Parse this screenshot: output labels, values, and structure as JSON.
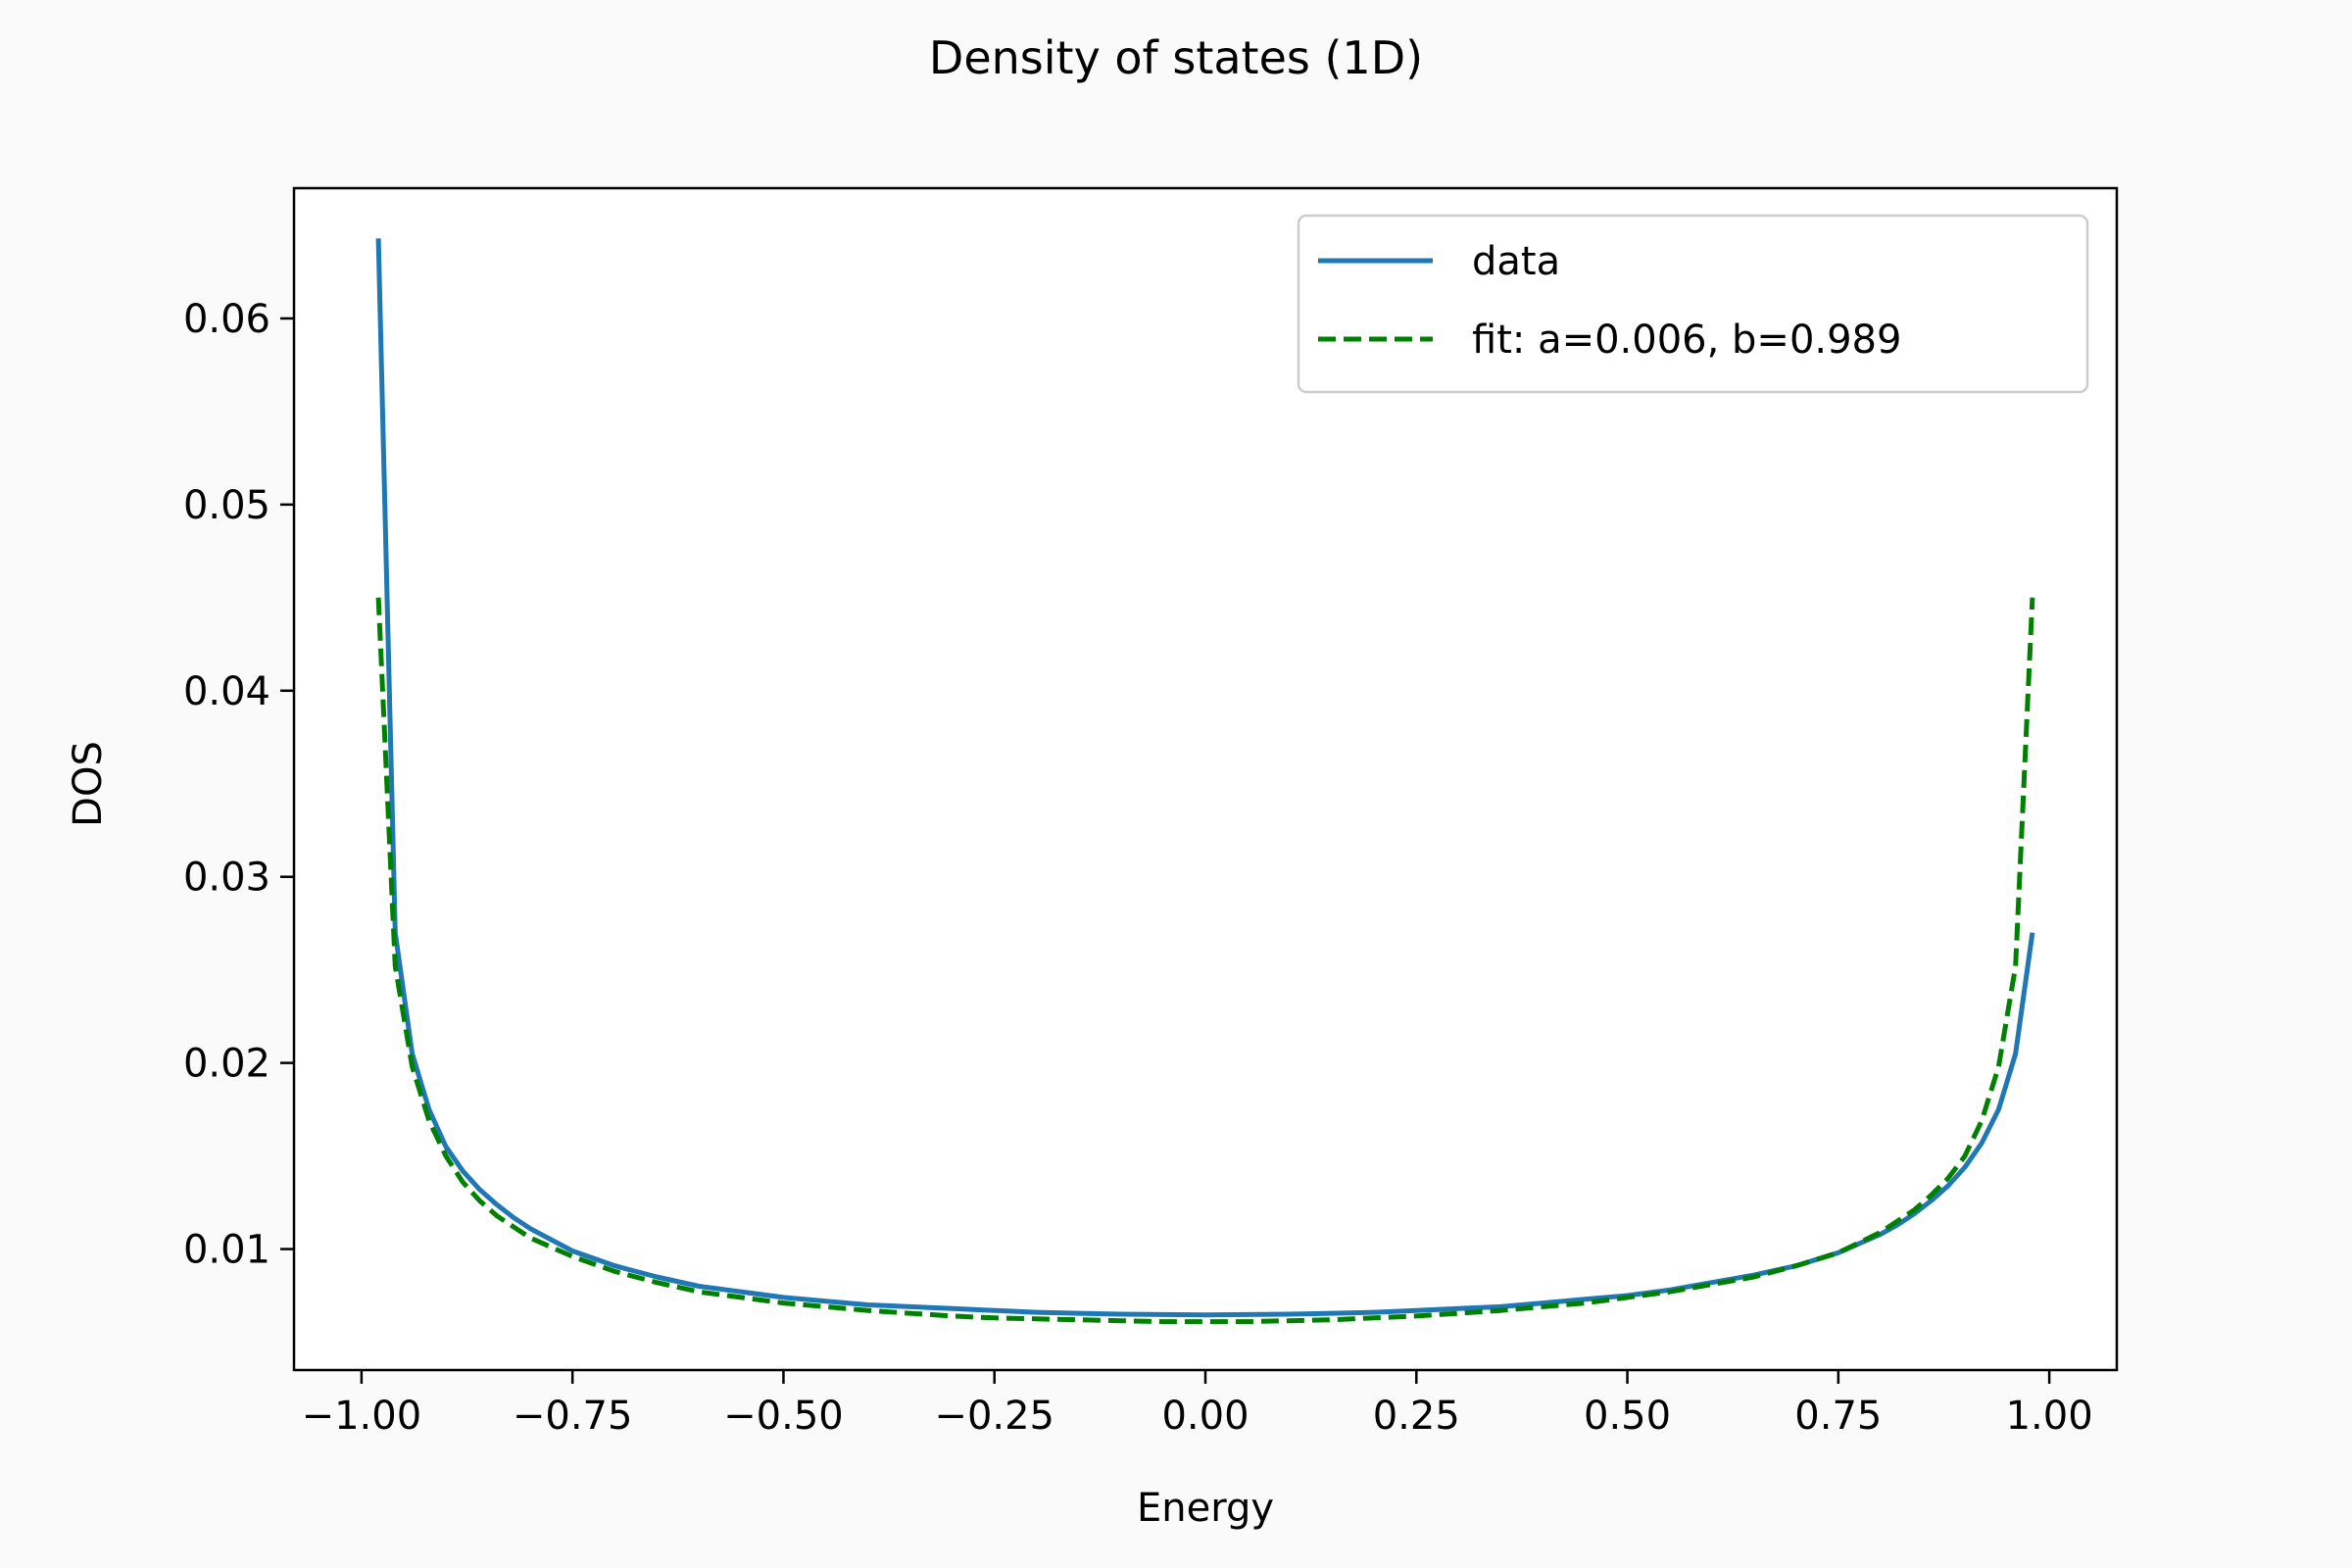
{
  "chart_data": {
    "type": "line",
    "title": "Density of states (1D)",
    "xlabel": "Energy",
    "ylabel": "DOS",
    "xlim": [
      -1.08,
      1.08
    ],
    "ylim": [
      0.0035,
      0.067
    ],
    "xticks": [
      -1.0,
      -0.75,
      -0.5,
      -0.25,
      0.0,
      0.25,
      0.5,
      0.75,
      1.0
    ],
    "xtick_labels": [
      "−1.00",
      "−0.75",
      "−0.50",
      "−0.25",
      "0.00",
      "0.25",
      "0.50",
      "0.75",
      "1.00"
    ],
    "yticks": [
      0.01,
      0.02,
      0.03,
      0.04,
      0.05,
      0.06
    ],
    "ytick_labels": [
      "0.01",
      "0.02",
      "0.03",
      "0.04",
      "0.05",
      "0.06"
    ],
    "grid": false,
    "legend_position": "upper right",
    "series": [
      {
        "name": "data",
        "color": "#1f77b4",
        "style": "solid",
        "x": [
          -0.98,
          -0.96,
          -0.94,
          -0.92,
          -0.9,
          -0.88,
          -0.86,
          -0.84,
          -0.82,
          -0.8,
          -0.75,
          -0.7,
          -0.65,
          -0.6,
          -0.55,
          -0.5,
          -0.45,
          -0.4,
          -0.35,
          -0.3,
          -0.25,
          -0.2,
          -0.15,
          -0.1,
          -0.05,
          0.0,
          0.05,
          0.1,
          0.15,
          0.2,
          0.25,
          0.3,
          0.35,
          0.4,
          0.45,
          0.5,
          0.55,
          0.6,
          0.65,
          0.7,
          0.75,
          0.8,
          0.82,
          0.84,
          0.86,
          0.88,
          0.9,
          0.92,
          0.94,
          0.96,
          0.98
        ],
        "y": [
          0.0643,
          0.027,
          0.0205,
          0.0175,
          0.0155,
          0.0142,
          0.0132,
          0.0124,
          0.0117,
          0.0111,
          0.0099,
          0.0091,
          0.0085,
          0.008,
          0.0077,
          0.0074,
          0.0072,
          0.007,
          0.0069,
          0.0068,
          0.0067,
          0.0066,
          0.00655,
          0.0065,
          0.00648,
          0.00646,
          0.00648,
          0.0065,
          0.00655,
          0.0066,
          0.0067,
          0.0068,
          0.0069,
          0.0071,
          0.0073,
          0.0075,
          0.0078,
          0.0082,
          0.0086,
          0.0091,
          0.0098,
          0.0108,
          0.0113,
          0.0119,
          0.0126,
          0.0134,
          0.0144,
          0.0157,
          0.0175,
          0.0205,
          0.027
        ]
      },
      {
        "name": "fit: a=0.006, b=0.989",
        "color": "#008000",
        "style": "dashed",
        "x": [
          -0.98,
          -0.96,
          -0.94,
          -0.92,
          -0.9,
          -0.88,
          -0.86,
          -0.84,
          -0.82,
          -0.8,
          -0.75,
          -0.7,
          -0.65,
          -0.6,
          -0.55,
          -0.5,
          -0.45,
          -0.4,
          -0.35,
          -0.3,
          -0.25,
          -0.2,
          -0.15,
          -0.1,
          -0.05,
          0.0,
          0.05,
          0.1,
          0.15,
          0.2,
          0.25,
          0.3,
          0.35,
          0.4,
          0.45,
          0.5,
          0.55,
          0.6,
          0.65,
          0.7,
          0.75,
          0.8,
          0.82,
          0.84,
          0.86,
          0.88,
          0.9,
          0.92,
          0.94,
          0.96,
          0.98
        ],
        "y": [
          0.045,
          0.0252,
          0.0198,
          0.0169,
          0.015,
          0.0136,
          0.0126,
          0.0118,
          0.0112,
          0.0106,
          0.0096,
          0.0088,
          0.0082,
          0.0077,
          0.0074,
          0.0071,
          0.0069,
          0.0067,
          0.00655,
          0.0064,
          0.0063,
          0.00625,
          0.0062,
          0.00615,
          0.0061,
          0.0061,
          0.0061,
          0.00615,
          0.0062,
          0.0063,
          0.0064,
          0.00655,
          0.0067,
          0.0069,
          0.0071,
          0.0074,
          0.0077,
          0.0081,
          0.0085,
          0.0091,
          0.0098,
          0.0109,
          0.0115,
          0.0121,
          0.0129,
          0.0138,
          0.015,
          0.0169,
          0.0198,
          0.0252,
          0.045
        ]
      }
    ]
  }
}
